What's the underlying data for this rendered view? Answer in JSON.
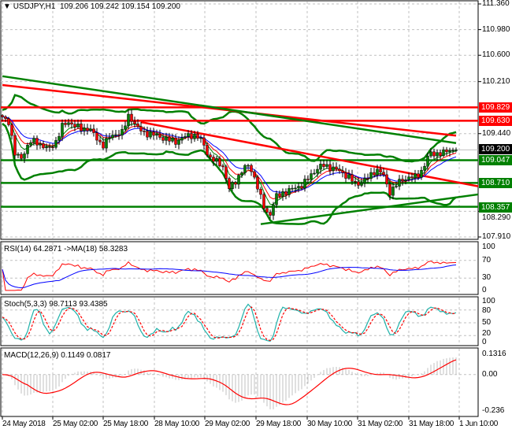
{
  "chart_data": {
    "type": "candlestick",
    "symbol_title": "USDJPY,H1",
    "ohlc_readout": [
      "109.206",
      "109.242",
      "109.154",
      "109.200"
    ],
    "closes": [
      109.67,
      109.612,
      109.087,
      109.087,
      109.32,
      109.32,
      109.262,
      109.204,
      109.32,
      109.553,
      109.612,
      109.553,
      109.495,
      109.53,
      109.379,
      109.262,
      109.379,
      109.437,
      109.46,
      109.728,
      109.553,
      109.46,
      109.437,
      109.414,
      109.379,
      109.344,
      109.32,
      109.379,
      109.414,
      109.414,
      109.32,
      109.087,
      109.029,
      108.971,
      108.621,
      108.738,
      108.912,
      108.971,
      108.738,
      108.388,
      108.213,
      108.505,
      108.563,
      108.598,
      108.645,
      108.68,
      108.796,
      108.912,
      108.971,
      108.947,
      108.912,
      108.854,
      108.796,
      108.68,
      108.738,
      108.796,
      108.912,
      108.854,
      108.563,
      108.68,
      108.761,
      108.796,
      108.796,
      108.912,
      109.146,
      109.146,
      109.146,
      109.204,
      109.2
    ],
    "price_axis": {
      "ticks": [
        "111.360",
        "110.980",
        "110.600",
        "110.210",
        "109.440",
        "108.290",
        "107.910"
      ],
      "range": [
        107.91,
        111.36
      ]
    },
    "last_price": "109.200",
    "levels": [
      {
        "label": "109.829",
        "price": 109.829,
        "color": "#ff0000"
      },
      {
        "label": "109.630",
        "price": 109.63,
        "color": "#ff0000"
      },
      {
        "label": "109.047",
        "price": 109.047,
        "color": "#008000"
      },
      {
        "label": "108.710",
        "price": 108.71,
        "color": "#008000"
      },
      {
        "label": "108.357",
        "price": 108.357,
        "color": "#008000"
      }
    ],
    "trendlines": [
      {
        "color": "#ff0000",
        "from_bar": 0,
        "from_price": 110.16,
        "to_bar": 144,
        "to_price": 109.41
      },
      {
        "color": "#008000",
        "from_bar": 0,
        "from_price": 110.29,
        "to_bar": 144,
        "to_price": 109.3
      },
      {
        "color": "#ff0000",
        "from_bar": 44,
        "from_price": 109.61,
        "to_bar": 151,
        "to_price": 108.66
      },
      {
        "color": "#008000",
        "from_bar": 82,
        "from_price": 108.1,
        "to_bar": 151,
        "to_price": 108.54
      }
    ],
    "time_axis": [
      "24 May 2018",
      "25 May 02:00",
      "25 May 18:00",
      "28 May 10:00",
      "29 May 02:00",
      "29 May 18:00",
      "30 May 10:00",
      "31 May 02:00",
      "31 May 18:00",
      "1 Jun 10:00"
    ],
    "colors": {
      "bull": "#008000",
      "bear": "#ff0000",
      "band": "#008000",
      "ma_fast": "#0000ff",
      "ma_mid": "#ff0000",
      "ma_slow": "#008000"
    },
    "grid": true,
    "rsi": {
      "label": "RSI(14) 64.2871  ->MA(18) 58.3283",
      "ticks": [
        "100",
        "70",
        "30",
        "0"
      ],
      "colors": {
        "rsi": "#ff0000",
        "ma": "#0000ff"
      }
    },
    "stoch": {
      "label": "Stoch(5,3,3) 98.7113 93.4385",
      "ticks": [
        "100",
        "80",
        "50",
        "20",
        "0"
      ],
      "colors": {
        "main": "#20b2aa",
        "signal": "#ff0000"
      }
    },
    "macd": {
      "label": "MACD(12,26,9) 0.1149 0.0817",
      "ticks": [
        "0.1316",
        "0.00",
        "-0.236"
      ],
      "range": [
        -0.236,
        0.1316
      ],
      "colors": {
        "hist": "#c0c0c0",
        "signal": "#ff0000"
      }
    }
  }
}
